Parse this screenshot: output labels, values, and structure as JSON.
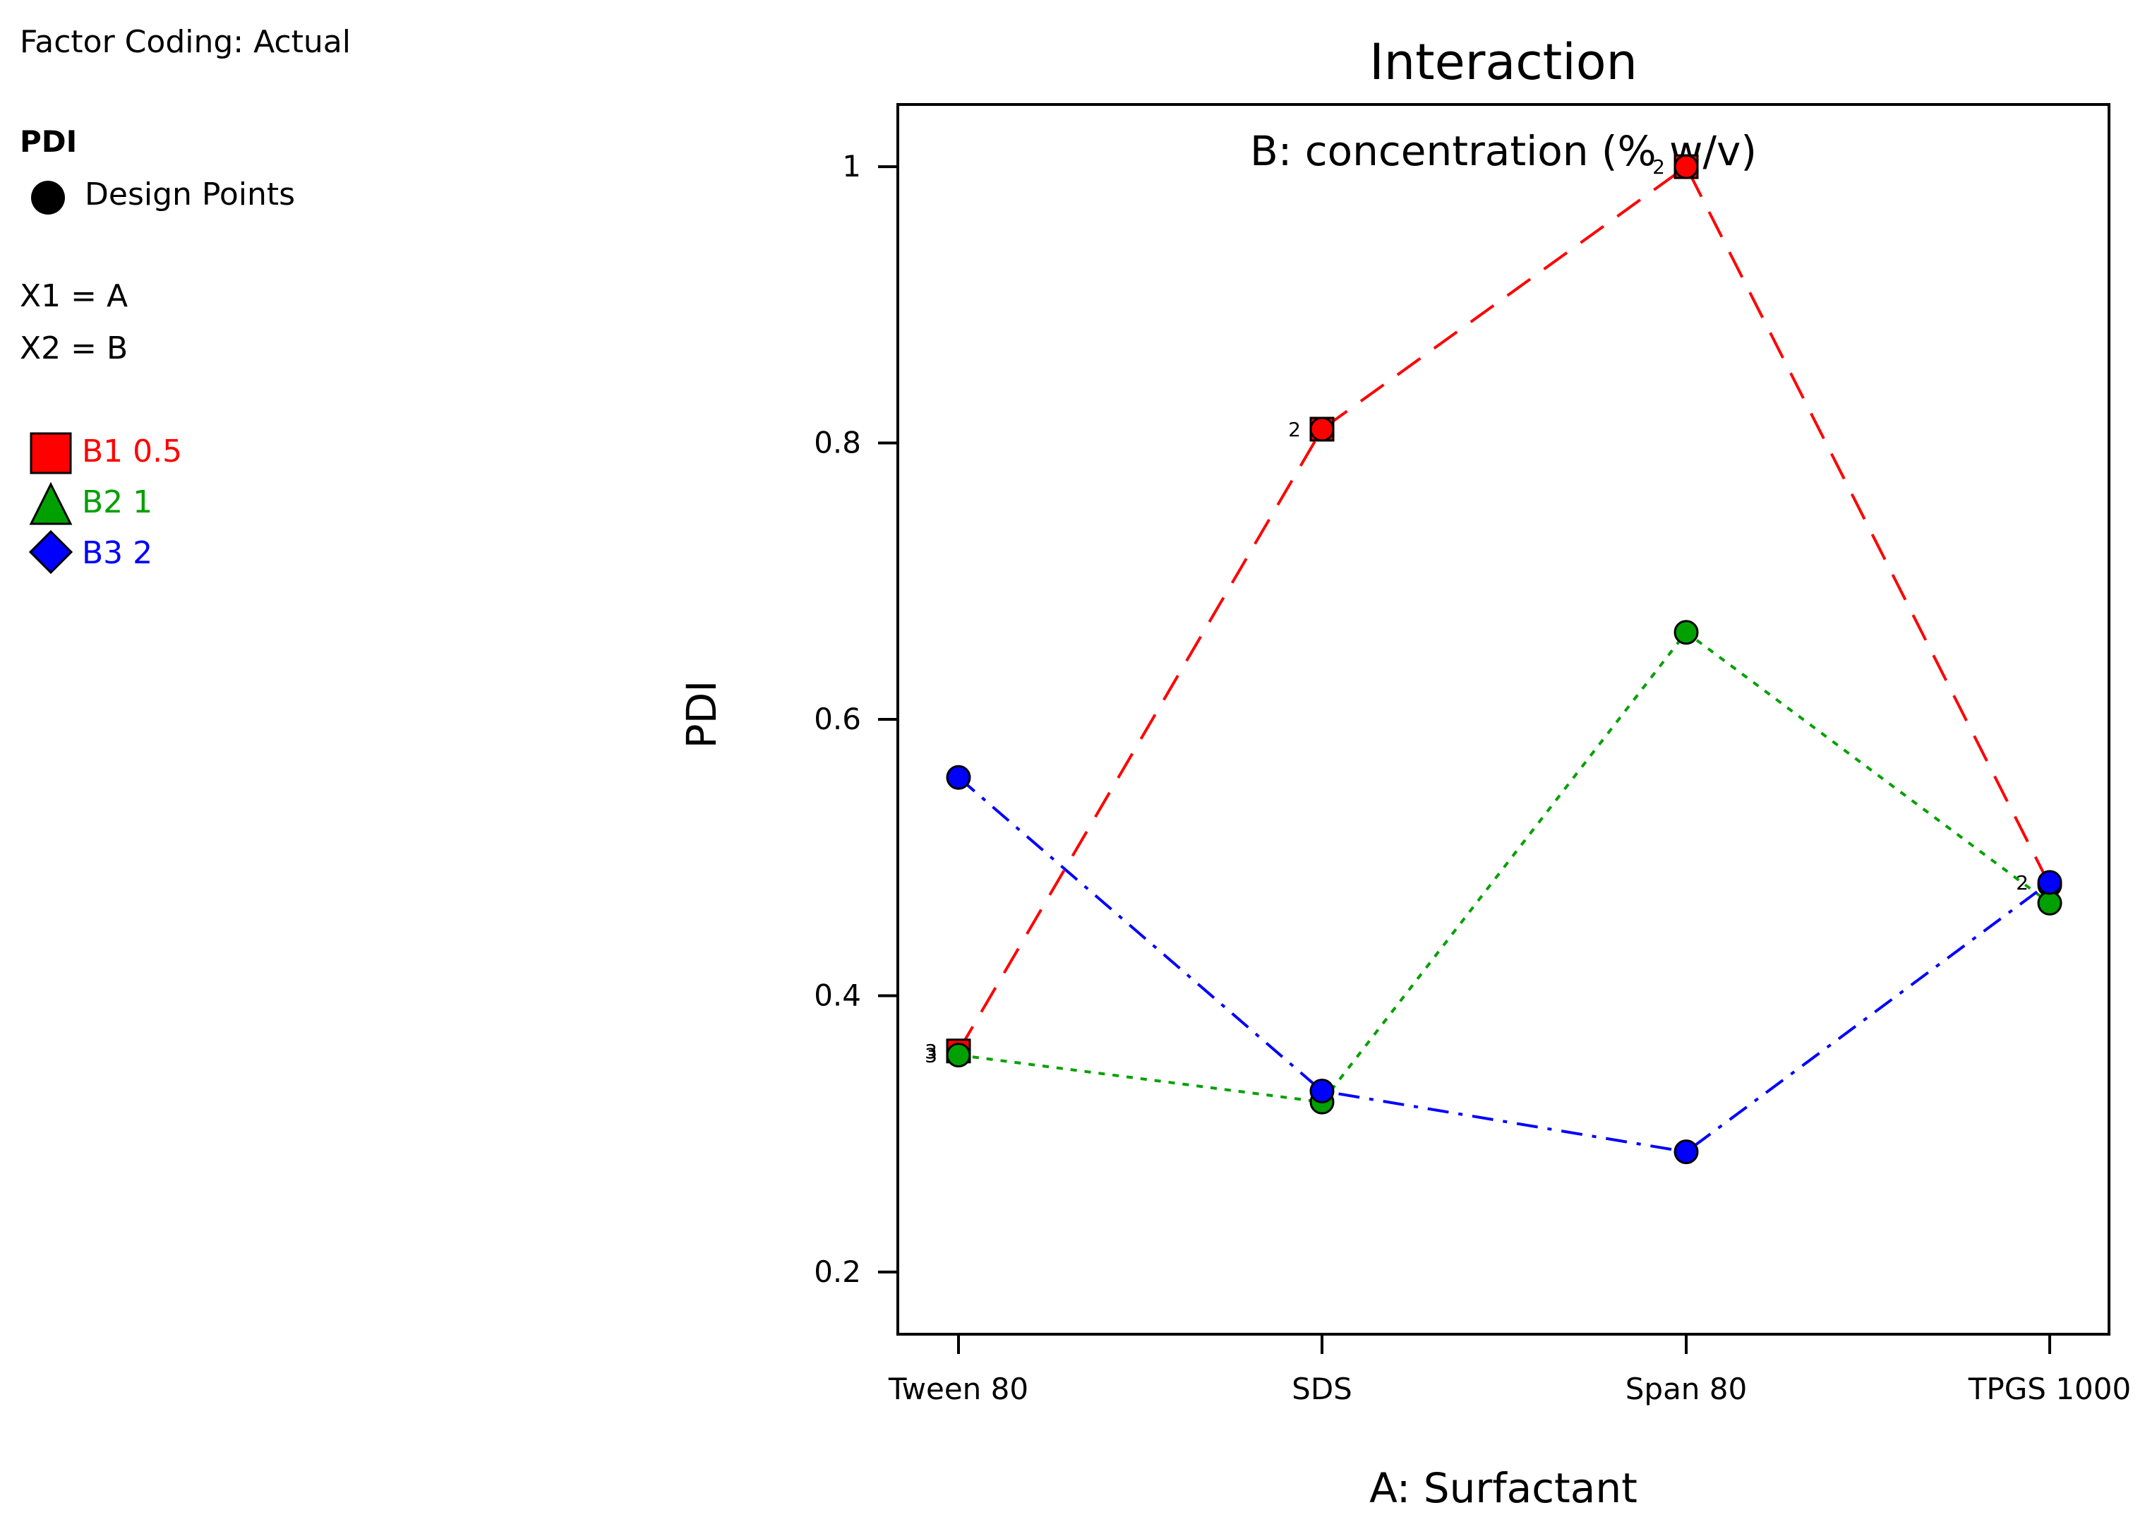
{
  "chart_data": {
    "type": "line",
    "title": "Interaction",
    "subtitle": "B: concentration (% w/v)",
    "xlabel": "A: Surfactant",
    "ylabel": "PDI",
    "categories": [
      "Tween 80",
      "SDS",
      "Span 80",
      "TPGS 1000"
    ],
    "ylim": [
      0.155,
      1.045
    ],
    "yticks": [
      0.2,
      0.4,
      0.6,
      0.8,
      1
    ],
    "series": [
      {
        "name": "B1 0.5",
        "color": "#ff0000",
        "dash": "long-dash",
        "marker": "square",
        "values": [
          0.36,
          0.81,
          1.0,
          0.48
        ],
        "point_counts": [
          "3",
          "2",
          "2",
          ""
        ]
      },
      {
        "name": "B2 1",
        "color": "#00a000",
        "dash": "dotted",
        "marker": "triangle",
        "values": [
          0.357,
          0.323,
          0.663,
          0.467
        ],
        "point_counts": [
          "3",
          "",
          "",
          ""
        ]
      },
      {
        "name": "B3 2",
        "color": "#0000ff",
        "dash": "dash-dot",
        "marker": "diamond",
        "values": [
          0.558,
          0.331,
          0.287,
          0.482
        ],
        "point_counts": [
          "",
          "",
          "",
          "2"
        ]
      }
    ],
    "legend_position": "left"
  },
  "legend": {
    "factor_coding": "Factor Coding: Actual",
    "response": "PDI",
    "design_points": "Design Points",
    "x1": "X1 = A",
    "x2": "X2 = B",
    "items": [
      "B1 0.5",
      "B2 1",
      "B3 2"
    ]
  }
}
